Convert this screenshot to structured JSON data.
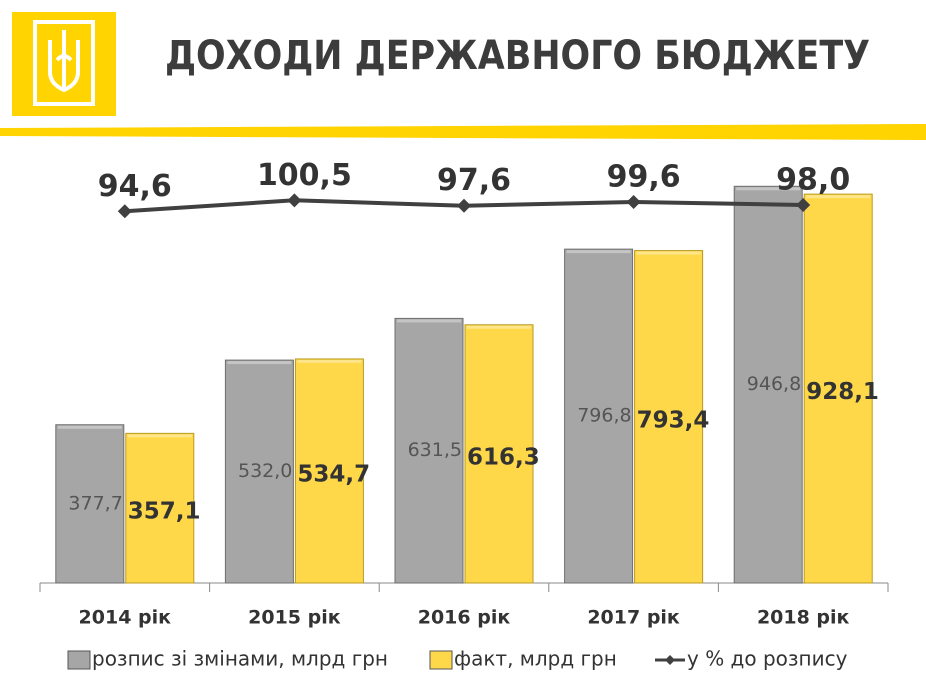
{
  "chart_data": {
    "type": "bar",
    "title": "ДОХОДИ ДЕРЖАВНОГО БЮДЖЕТУ",
    "categories": [
      "2014 рік",
      "2015 рік",
      "2016 рік",
      "2017 рік",
      "2018 рік"
    ],
    "series": [
      {
        "name": "розпис зі змінами, млрд грн",
        "color": "#a6a6a6",
        "values": [
          377.7,
          532.0,
          631.5,
          796.8,
          946.8
        ],
        "value_labels": [
          "377,7",
          "532,0",
          "631,5",
          "796,8",
          "946,8"
        ]
      },
      {
        "name": "факт, млрд грн",
        "color": "#ffd84a",
        "values": [
          357.1,
          534.7,
          616.3,
          793.4,
          928.1
        ],
        "value_labels": [
          "357,1",
          "534,7",
          "616,3",
          "793,4",
          "928,1"
        ]
      },
      {
        "name": "у % до розпису",
        "color": "#404040",
        "axis": "y2",
        "values": [
          94.6,
          100.5,
          97.6,
          99.6,
          98.0
        ],
        "value_labels": [
          "94,6",
          "100,5",
          "97,6",
          "99,6",
          "98,0"
        ]
      }
    ],
    "ylim": [
      0,
      1000
    ],
    "y2lim": [
      -105,
      120
    ]
  }
}
